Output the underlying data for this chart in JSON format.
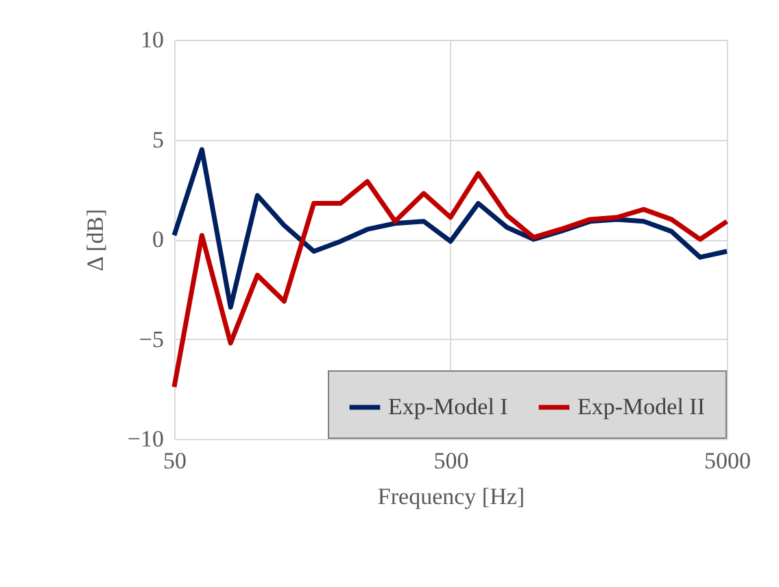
{
  "chart_data": {
    "type": "line",
    "xlabel": "Frequency [Hz]",
    "ylabel": "Δ [dB]",
    "log": "x",
    "x": [
      50,
      63,
      80,
      100,
      125,
      160,
      200,
      250,
      315,
      400,
      500,
      630,
      800,
      1000,
      1250,
      1600,
      2000,
      2500,
      3150,
      4000,
      5000
    ],
    "series": [
      {
        "name": "Exp-Model I",
        "color": "#002060",
        "values": [
          0.2,
          4.5,
          -3.4,
          2.2,
          0.7,
          -0.6,
          -0.1,
          0.5,
          0.8,
          0.9,
          -0.1,
          1.8,
          0.6,
          0,
          0.4,
          0.9,
          1.0,
          0.9,
          0.4,
          -0.9,
          -0.6
        ]
      },
      {
        "name": "Exp-Model II",
        "color": "#c00000",
        "values": [
          -7.4,
          0.2,
          -5.2,
          -1.8,
          -3.1,
          1.8,
          1.8,
          2.9,
          0.9,
          2.3,
          1.1,
          3.3,
          1.2,
          0.1,
          0.5,
          1.0,
          1.1,
          1.5,
          1.0,
          0,
          0.9
        ]
      }
    ],
    "xlim": [
      50,
      5000
    ],
    "xticks": [
      50,
      500,
      5000
    ],
    "ylim": [
      -10,
      10
    ],
    "yticks": [
      10,
      5,
      0,
      -5,
      -10
    ],
    "grid": true,
    "legend": "bottom right",
    "marker": "none",
    "line_style": "solid"
  }
}
